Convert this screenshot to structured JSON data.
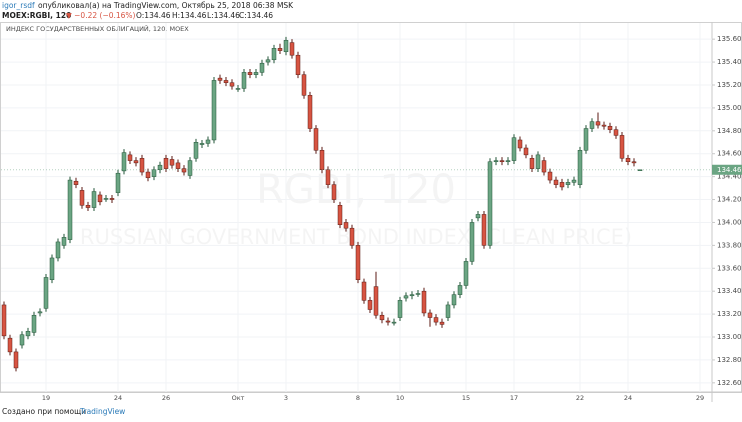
{
  "header": {
    "author": "igor_rsdf",
    "published": "опубликовал(а) на TradingView.com, Октябрь 25, 2018 06:38 MSK"
  },
  "legend": {
    "symbol": "MOEX:RGBI, 120",
    "change": "▼ −0.22 (−0.16%)",
    "open": "O:134.46",
    "high": "H:134.46",
    "low": "L:134.46",
    "close": "C:134.46"
  },
  "footer": {
    "made_with": "Создано при помощи",
    "brand": "TradingView"
  },
  "chart_data": {
    "type": "candlestick",
    "title": "ИНДЕКС ГОСУДАРСТВЕННЫХ ОБЛИГАЦИЙ, 120, MOEX",
    "watermark": "RGBI, 120",
    "watermark_subtitle": "RUSSIAN GOVERNMENT BOND INDEX (CLEAN PRICE)",
    "up_color": "#6ba583",
    "up_border": "#225437",
    "down_color": "#d75442",
    "down_border": "#5b1a13",
    "grid": true,
    "last_price": 134.46,
    "ylim": [
      132.52,
      135.68
    ],
    "yticks": [
      {
        "value": 132.6,
        "label": "132.60"
      },
      {
        "value": 132.8,
        "label": "132.80"
      },
      {
        "value": 133,
        "label": "133.00"
      },
      {
        "value": 133.2,
        "label": "133.20"
      },
      {
        "value": 133.4,
        "label": "133.40"
      },
      {
        "value": 133.6,
        "label": "133.60"
      },
      {
        "value": 133.8,
        "label": "133.80"
      },
      {
        "value": 134,
        "label": "134.00"
      },
      {
        "value": 134.2,
        "label": "134.20"
      },
      {
        "value": 134.4,
        "label": "134.40"
      },
      {
        "value": 134.6,
        "label": "134.60"
      },
      {
        "value": 134.8,
        "label": "134.80"
      },
      {
        "value": 135,
        "label": "135.00"
      },
      {
        "value": 135.2,
        "label": "135.20"
      },
      {
        "value": 135.4,
        "label": "135.40"
      },
      {
        "value": 135.6,
        "label": "135.60"
      }
    ],
    "categories": [
      null,
      null,
      null,
      null,
      null,
      null,
      null,
      "19",
      null,
      null,
      null,
      null,
      null,
      null,
      null,
      null,
      null,
      null,
      null,
      "24",
      null,
      null,
      null,
      null,
      null,
      null,
      null,
      "26",
      null,
      null,
      null,
      null,
      null,
      null,
      null,
      null,
      null,
      null,
      null,
      "Окт",
      null,
      null,
      null,
      null,
      null,
      null,
      null,
      "3",
      null,
      null,
      null,
      null,
      null,
      null,
      null,
      null,
      null,
      null,
      null,
      "8",
      null,
      null,
      null,
      null,
      null,
      null,
      "10",
      null,
      null,
      null,
      null,
      null,
      null,
      null,
      null,
      null,
      null,
      "15",
      null,
      null,
      null,
      null,
      null,
      null,
      null,
      "17",
      null,
      null,
      null,
      null,
      null,
      null,
      null,
      null,
      null,
      null,
      "22",
      null,
      null,
      null,
      null,
      null,
      null,
      null,
      "24",
      null,
      null,
      null,
      null,
      null,
      null,
      null,
      null,
      null,
      null,
      null,
      "29",
      null
    ],
    "open": [
      133.28,
      132.99,
      132.87,
      132.93,
      133.01,
      133.04,
      133.21,
      133.25,
      133.5,
      133.69,
      133.8,
      133.85,
      134.36,
      134.28,
      134.15,
      134.13,
      134.24,
      134.21,
      134.21,
      134.26,
      134.45,
      134.59,
      134.54,
      134.56,
      134.44,
      134.4,
      134.46,
      134.56,
      134.55,
      134.52,
      134.47,
      134.41,
      134.56,
      134.68,
      134.69,
      134.72,
      135.26,
      135.24,
      135.22,
      135.17,
      135.17,
      135.31,
      135.29,
      135.31,
      135.4,
      135.42,
      135.52,
      135.49,
      135.57,
      135.46,
      135.29,
      135.11,
      134.82,
      134.63,
      134.46,
      134.33,
      134.15,
      134.0,
      133.95,
      133.8,
      133.48,
      133.32,
      133.44,
      133.19,
      133.14,
      133.13,
      133.17,
      133.34,
      133.36,
      133.38,
      133.4,
      133.21,
      133.17,
      133.13,
      133.17,
      133.28,
      133.37,
      133.45,
      133.66,
      134.04,
      134.07,
      133.8,
      134.53,
      134.54,
      134.53,
      134.54,
      134.72,
      134.65,
      134.56,
      134.47,
      134.54,
      134.44,
      134.37,
      134.35,
      134.33,
      134.35,
      134.33,
      134.63,
      134.82,
      134.88,
      134.85,
      134.84,
      134.81,
      134.76,
      134.56,
      134.53,
      134.46,
      null,
      null,
      null,
      null,
      null,
      null,
      null,
      null,
      null,
      null,
      null
    ],
    "high": [
      133.31,
      133.02,
      132.9,
      133.05,
      133.08,
      133.22,
      133.25,
      133.55,
      133.72,
      133.86,
      133.9,
      134.4,
      134.39,
      134.31,
      134.18,
      134.3,
      134.27,
      134.24,
      134.24,
      134.46,
      134.64,
      134.62,
      134.57,
      134.59,
      134.47,
      134.49,
      134.53,
      134.59,
      134.58,
      134.55,
      134.5,
      134.57,
      134.73,
      134.72,
      134.75,
      135.27,
      135.29,
      135.27,
      135.25,
      135.2,
      135.34,
      135.34,
      135.34,
      135.42,
      135.45,
      135.55,
      135.56,
      135.62,
      135.6,
      135.49,
      135.32,
      135.14,
      134.85,
      134.66,
      134.49,
      134.36,
      134.18,
      134.03,
      133.98,
      133.83,
      133.51,
      133.35,
      133.57,
      133.22,
      133.17,
      133.16,
      133.35,
      133.39,
      133.4,
      133.41,
      133.43,
      133.24,
      133.2,
      133.16,
      133.31,
      133.4,
      133.48,
      133.69,
      134.03,
      134.1,
      134.1,
      134.56,
      134.57,
      134.57,
      134.57,
      134.77,
      134.75,
      134.68,
      134.59,
      134.62,
      134.57,
      134.47,
      134.4,
      134.38,
      134.38,
      134.4,
      134.66,
      134.85,
      134.91,
      134.96,
      134.88,
      134.87,
      134.84,
      134.79,
      134.59,
      134.56,
      134.46,
      null,
      null,
      null,
      null,
      null,
      null,
      null,
      null,
      null,
      null,
      null
    ],
    "low": [
      132.98,
      132.84,
      132.7,
      132.9,
      132.98,
      133.01,
      133.18,
      133.22,
      133.47,
      133.66,
      133.77,
      133.82,
      134.3,
      134.12,
      134.1,
      134.1,
      134.15,
      134.18,
      134.17,
      134.23,
      134.42,
      134.51,
      134.49,
      134.41,
      134.36,
      134.37,
      134.43,
      134.44,
      134.47,
      134.44,
      134.41,
      134.38,
      134.53,
      134.65,
      134.66,
      134.69,
      135.21,
      135.19,
      135.16,
      135.14,
      135.14,
      135.26,
      135.26,
      135.28,
      135.37,
      135.39,
      135.47,
      135.46,
      135.43,
      135.26,
      135.08,
      134.79,
      134.6,
      134.43,
      134.3,
      134.17,
      133.95,
      133.92,
      133.77,
      133.47,
      133.29,
      133.21,
      133.16,
      133.12,
      133.1,
      133.1,
      133.14,
      133.31,
      133.33,
      133.35,
      133.18,
      133.09,
      133.1,
      133.08,
      133.14,
      133.25,
      133.34,
      133.42,
      133.63,
      134.01,
      133.77,
      133.77,
      134.5,
      134.5,
      134.5,
      134.51,
      134.62,
      134.56,
      134.44,
      134.44,
      134.41,
      134.34,
      134.3,
      134.28,
      134.3,
      134.32,
      134.3,
      134.6,
      134.79,
      134.82,
      134.81,
      134.78,
      134.73,
      134.53,
      134.5,
      134.49,
      134.46,
      null,
      null,
      null,
      null,
      null,
      null,
      null,
      null,
      null,
      null,
      null
    ],
    "close": [
      133.01,
      132.87,
      132.73,
      133.02,
      133.05,
      133.19,
      133.22,
      133.52,
      133.69,
      133.83,
      133.87,
      134.37,
      134.33,
      134.15,
      134.13,
      134.27,
      134.18,
      134.21,
      134.2,
      134.43,
      134.61,
      134.54,
      134.52,
      134.44,
      134.39,
      134.46,
      134.5,
      134.47,
      134.5,
      134.47,
      134.44,
      134.54,
      134.7,
      134.69,
      134.72,
      135.24,
      135.24,
      135.22,
      135.19,
      135.17,
      135.31,
      135.29,
      135.31,
      135.39,
      135.42,
      135.52,
      135.5,
      135.59,
      135.46,
      135.29,
      135.11,
      134.82,
      134.63,
      134.46,
      134.33,
      134.2,
      133.98,
      133.95,
      133.8,
      133.5,
      133.32,
      133.24,
      133.19,
      133.15,
      133.13,
      133.13,
      133.32,
      133.36,
      133.37,
      133.38,
      133.21,
      133.17,
      133.13,
      133.11,
      133.28,
      133.37,
      133.45,
      133.66,
      134.0,
      134.07,
      133.8,
      134.53,
      134.54,
      134.53,
      134.54,
      134.74,
      134.65,
      134.59,
      134.47,
      134.59,
      134.44,
      134.37,
      134.33,
      134.31,
      134.35,
      134.37,
      134.63,
      134.82,
      134.88,
      134.85,
      134.84,
      134.81,
      134.76,
      134.56,
      134.53,
      134.52,
      134.46,
      null,
      null,
      null,
      null,
      null,
      null,
      null,
      null,
      null,
      null,
      null
    ]
  }
}
